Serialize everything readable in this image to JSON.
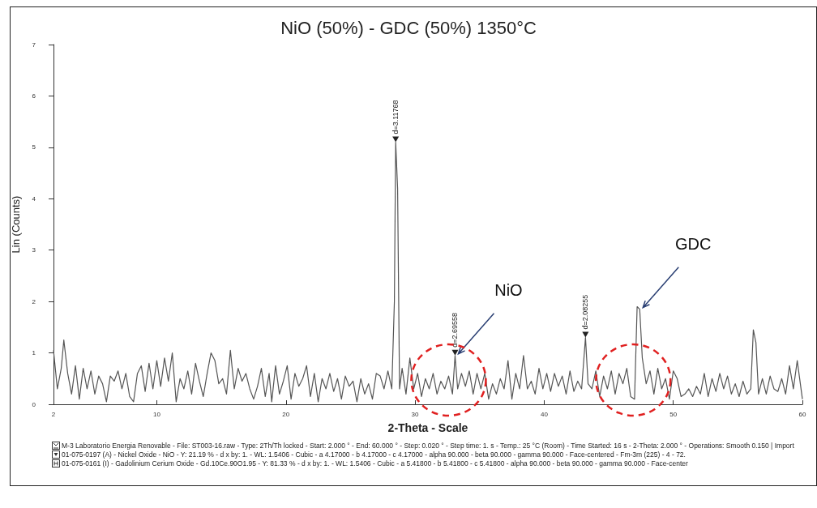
{
  "chart_data": {
    "type": "line",
    "title": "NiO (50%) - GDC (50%) 1350°C",
    "xlabel": "2-Theta - Scale",
    "ylabel": "Lin (Counts)",
    "xlim": [
      2,
      60
    ],
    "xticks": [
      2,
      10,
      20,
      30,
      40,
      50,
      60
    ],
    "ylim": [
      0,
      7
    ],
    "yticks": [
      0,
      1,
      2,
      3,
      4,
      5,
      6,
      7
    ],
    "grid": false,
    "marker": "none",
    "line_style": "solid",
    "series": [
      {
        "color": "#555555",
        "x": [
          2.0,
          2.3,
          2.6,
          2.8,
          3.1,
          3.4,
          3.7,
          4.0,
          4.3,
          4.6,
          4.9,
          5.2,
          5.5,
          5.8,
          6.1,
          6.4,
          6.7,
          7.0,
          7.3,
          7.6,
          7.9,
          8.2,
          8.5,
          8.8,
          9.1,
          9.4,
          9.7,
          10.0,
          10.3,
          10.6,
          10.9,
          11.2,
          11.5,
          11.8,
          12.1,
          12.4,
          12.7,
          13.0,
          13.3,
          13.6,
          13.9,
          14.2,
          14.5,
          14.8,
          15.1,
          15.4,
          15.7,
          16.0,
          16.3,
          16.6,
          16.9,
          17.2,
          17.5,
          17.8,
          18.1,
          18.4,
          18.7,
          18.9,
          19.2,
          19.5,
          19.8,
          20.1,
          20.4,
          20.7,
          21.0,
          21.3,
          21.6,
          21.9,
          22.2,
          22.5,
          22.8,
          23.1,
          23.4,
          23.7,
          24.0,
          24.3,
          24.6,
          24.9,
          25.2,
          25.5,
          25.8,
          26.1,
          26.4,
          26.7,
          27.0,
          27.3,
          27.6,
          27.9,
          28.2,
          28.4,
          28.5,
          28.65,
          28.8,
          29.0,
          29.3,
          29.6,
          29.9,
          30.2,
          30.5,
          30.8,
          31.1,
          31.4,
          31.7,
          32.0,
          32.3,
          32.6,
          32.9,
          33.1,
          33.3,
          33.6,
          33.9,
          34.2,
          34.5,
          34.8,
          35.1,
          35.4,
          35.7,
          36.0,
          36.3,
          36.6,
          36.9,
          37.2,
          37.5,
          37.8,
          38.1,
          38.4,
          38.7,
          39.0,
          39.3,
          39.6,
          39.9,
          40.2,
          40.5,
          40.8,
          41.1,
          41.4,
          41.7,
          42.0,
          42.3,
          42.6,
          42.9,
          43.2,
          43.4,
          43.7,
          44.0,
          44.3,
          44.6,
          44.9,
          45.2,
          45.5,
          45.8,
          46.1,
          46.4,
          46.7,
          47.0,
          47.2,
          47.4,
          47.6,
          47.9,
          48.2,
          48.5,
          48.8,
          49.1,
          49.4,
          49.7,
          50.0,
          50.3,
          50.6,
          50.9,
          51.2,
          51.5,
          51.8,
          52.1,
          52.4,
          52.7,
          53.0,
          53.3,
          53.6,
          53.9,
          54.2,
          54.5,
          54.8,
          55.1,
          55.4,
          55.7,
          56.0,
          56.2,
          56.4,
          56.6,
          56.9,
          57.2,
          57.5,
          57.8,
          58.1,
          58.4,
          58.7,
          59.0,
          59.3,
          59.6,
          60.0
        ],
        "values": [
          1.05,
          0.3,
          0.7,
          1.25,
          0.6,
          0.2,
          0.75,
          0.1,
          0.7,
          0.3,
          0.65,
          0.2,
          0.55,
          0.4,
          0.05,
          0.55,
          0.45,
          0.65,
          0.3,
          0.6,
          0.15,
          0.05,
          0.6,
          0.75,
          0.25,
          0.8,
          0.3,
          0.85,
          0.35,
          0.9,
          0.45,
          1.0,
          0.05,
          0.5,
          0.3,
          0.65,
          0.2,
          0.8,
          0.45,
          0.15,
          0.6,
          1.0,
          0.85,
          0.4,
          0.5,
          0.2,
          1.05,
          0.3,
          0.7,
          0.45,
          0.6,
          0.3,
          0.1,
          0.35,
          0.7,
          0.15,
          0.6,
          0.05,
          0.75,
          0.2,
          0.45,
          0.75,
          0.1,
          0.6,
          0.35,
          0.5,
          0.75,
          0.15,
          0.6,
          0.05,
          0.5,
          0.3,
          0.6,
          0.25,
          0.5,
          0.1,
          0.55,
          0.35,
          0.45,
          0.05,
          0.5,
          0.2,
          0.4,
          0.1,
          0.6,
          0.55,
          0.3,
          0.65,
          0.3,
          2.0,
          5.1,
          4.2,
          0.3,
          0.7,
          0.2,
          0.9,
          0.3,
          0.6,
          0.15,
          0.5,
          0.3,
          0.6,
          0.2,
          0.45,
          0.3,
          0.55,
          0.2,
          0.95,
          0.3,
          0.6,
          0.35,
          0.65,
          0.2,
          0.6,
          0.3,
          0.6,
          0.1,
          0.4,
          0.2,
          0.5,
          0.3,
          0.85,
          0.1,
          0.6,
          0.3,
          0.95,
          0.3,
          0.45,
          0.2,
          0.7,
          0.3,
          0.6,
          0.25,
          0.6,
          0.35,
          0.55,
          0.2,
          0.65,
          0.25,
          0.45,
          0.3,
          1.3,
          0.4,
          0.3,
          0.65,
          0.15,
          0.55,
          0.3,
          0.65,
          0.2,
          0.6,
          0.4,
          0.7,
          0.15,
          0.1,
          1.9,
          1.85,
          0.9,
          0.4,
          0.65,
          0.2,
          0.7,
          0.3,
          0.5,
          0.1,
          0.65,
          0.5,
          0.15,
          0.2,
          0.3,
          0.15,
          0.35,
          0.2,
          0.6,
          0.15,
          0.5,
          0.25,
          0.6,
          0.3,
          0.55,
          0.2,
          0.4,
          0.15,
          0.45,
          0.2,
          0.3,
          1.45,
          1.2,
          0.2,
          0.5,
          0.2,
          0.55,
          0.3,
          0.25,
          0.5,
          0.2,
          0.75,
          0.3,
          0.85,
          0.1
        ]
      }
    ],
    "annotations": [
      {
        "text": "d=3.11768",
        "x": 28.5,
        "y": 5.1
      },
      {
        "text": "d=2.69558",
        "x": 33.1,
        "y": 0.95
      },
      {
        "text": "d=2.08255",
        "x": 43.2,
        "y": 1.3
      },
      {
        "text": "NiO",
        "x": 33.1,
        "y": 0.95
      },
      {
        "text": "GDC",
        "x": 47.4,
        "y": 1.85
      },
      "M-3 Laboratorio Energia Renovable - File: ST003-16.raw - Type: 2Th/Th locked - Start: 2.000 ° - End: 60.000 ° - Step: 0.020 ° - Step time: 1. s - Temp.: 25 °C (Room) - Time Started: 16 s - 2-Theta: 2.000 ° - Operations: Smooth 0.150 | Import",
      "01-075-0197 (A) - Nickel Oxide - NiO - Y: 21.19 % - d x by: 1. - WL: 1.5406 - Cubic - a 4.17000 - b 4.17000 - c 4.17000 - alpha 90.000 - beta 90.000 - gamma 90.000 - Face-centered - Fm-3m (225) - 4 - 72.",
      "01-075-0161 (I) - Gadolinium Cerium Oxide - Gd.10Ce.90O1.95 - Y: 81.33 % - d x by: 1. - WL: 1.5406 - Cubic - a 5.41800 - b 5.41800 - c 5.41800 - alpha 90.000 - beta 90.000 - gamma 90.000 - Face-center"
    ]
  }
}
